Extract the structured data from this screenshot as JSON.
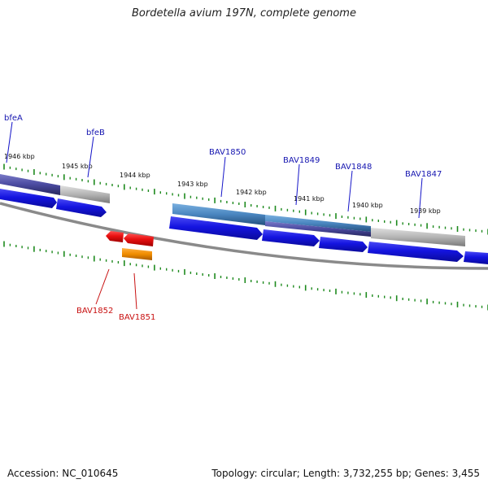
{
  "title": "Bordetella avium 197N, complete genome",
  "accession_text": "Accession: NC_010645",
  "summary_text": "Topology: circular; Length: 3,732,255 bp; Genes: 3,455",
  "kbp_ticks": [
    {
      "label": "1946 kbp",
      "pos": 1946
    },
    {
      "label": "1945 kbp",
      "pos": 1945
    },
    {
      "label": "1944 kbp",
      "pos": 1944
    },
    {
      "label": "1943 kbp",
      "pos": 1943
    },
    {
      "label": "1942 kbp",
      "pos": 1942
    },
    {
      "label": "1941 kbp",
      "pos": 1941
    },
    {
      "label": "1940 kbp",
      "pos": 1940
    },
    {
      "label": "1939 kbp",
      "pos": 1939
    }
  ],
  "forward_genes": [
    {
      "name": "bfeA",
      "labeled": true
    },
    {
      "name": "bfeB",
      "labeled": true
    },
    {
      "name": "BAV1850",
      "labeled": true
    },
    {
      "name": "BAV1849",
      "labeled": true
    },
    {
      "name": "BAV1848",
      "labeled": true
    },
    {
      "name": "BAV1847",
      "labeled": true
    },
    {
      "name": "",
      "labeled": false
    }
  ],
  "reverse_genes": [
    {
      "name": "BAV1852",
      "labeled": true
    },
    {
      "name": "BAV1851",
      "labeled": true
    }
  ],
  "colors": {
    "forward_gene": "#1414e0",
    "reverse_gene": "#e81010",
    "reverse_product": "#f08c00",
    "product_dark": "#4a4aa0",
    "product_steel": "#4a86c0",
    "product_grey": "#b4b4b4",
    "backbone": "#8a8a8a",
    "tick": "#1e8a1e",
    "label_forward": "#1515b0",
    "label_reverse": "#c81010"
  }
}
